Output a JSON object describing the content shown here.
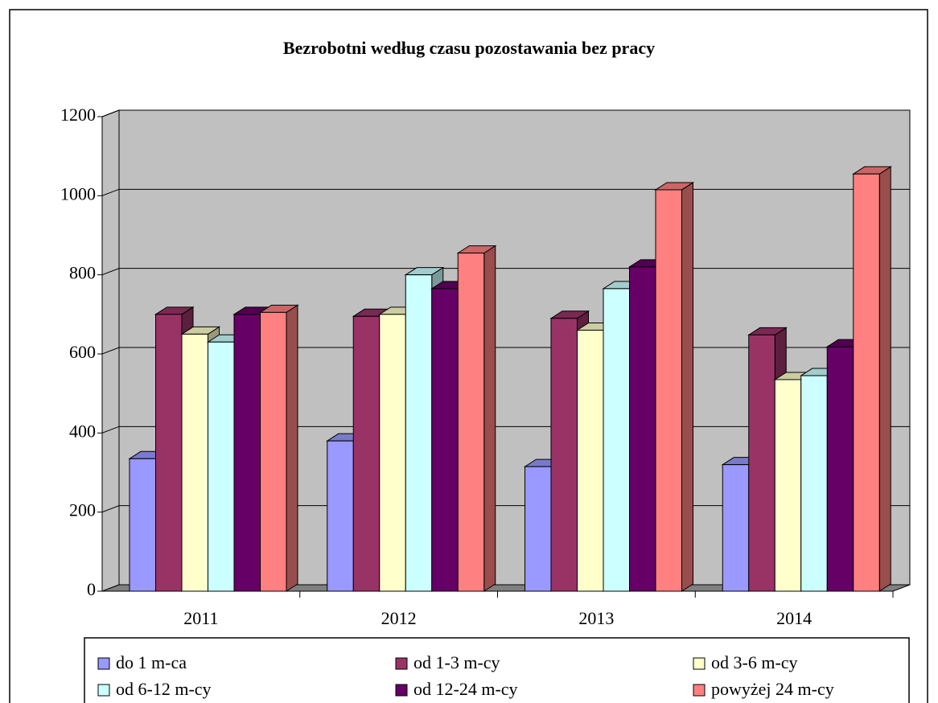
{
  "chart_data": {
    "type": "bar",
    "title": "Bezrobotni według czasu pozostawania bez pracy",
    "categories": [
      "2011",
      "2012",
      "2013",
      "2014"
    ],
    "series": [
      {
        "name": "do 1 m-ca",
        "color": "#9999ff",
        "values": [
          335,
          380,
          315,
          320
        ]
      },
      {
        "name": "od 1-3 m-cy",
        "color": "#993366",
        "values": [
          700,
          695,
          690,
          648
        ]
      },
      {
        "name": "od 3-6 m-cy",
        "color": "#ffffcc",
        "values": [
          650,
          700,
          660,
          535
        ]
      },
      {
        "name": "od 6-12 m-cy",
        "color": "#ccffff",
        "values": [
          630,
          800,
          765,
          545
        ]
      },
      {
        "name": "od 12-24 m-cy",
        "color": "#660066",
        "values": [
          700,
          765,
          820,
          618
        ]
      },
      {
        "name": "powyżej 24 m-cy",
        "color": "#ff8080",
        "values": [
          705,
          855,
          1015,
          1055
        ]
      }
    ],
    "ylim": [
      0,
      1200
    ],
    "yticks": [
      0,
      200,
      400,
      600,
      800,
      1000,
      1200
    ],
    "grid": true
  }
}
